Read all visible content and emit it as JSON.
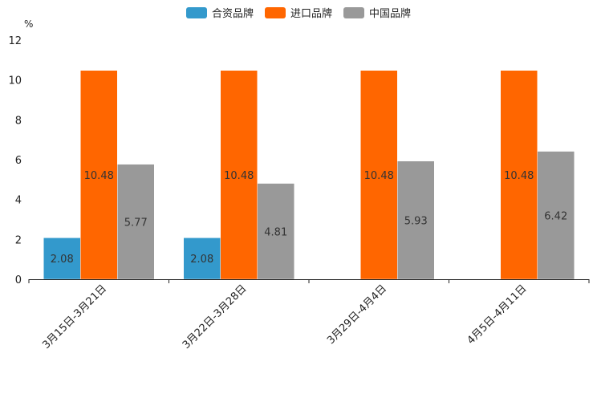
{
  "chart_data": {
    "type": "bar",
    "unit": "%",
    "categories": [
      "3月15日-3月21日",
      "3月22日-3月28日",
      "3月29日-4月4日",
      "4月5日-4月11日"
    ],
    "series": [
      {
        "name": "合资品牌",
        "color": "#3399cc",
        "values": [
          2.08,
          2.08,
          null,
          null
        ]
      },
      {
        "name": "进口品牌",
        "color": "#ff6600",
        "values": [
          10.48,
          10.48,
          10.48,
          10.48
        ]
      },
      {
        "name": "中国品牌",
        "color": "#999999",
        "values": [
          5.77,
          4.81,
          5.93,
          6.42
        ]
      }
    ],
    "data_labels": [
      [
        "2.08",
        "2.08",
        null,
        null
      ],
      [
        "10.48",
        "10.48",
        "10.48",
        "10.48"
      ],
      [
        "5.77",
        "4.81",
        "5.93",
        "6.42"
      ]
    ],
    "yticks": [
      "0",
      "2",
      "4",
      "6",
      "8",
      "10",
      "12"
    ],
    "ylim": [
      0,
      12
    ],
    "legend_position": "top-center",
    "grid": false
  }
}
